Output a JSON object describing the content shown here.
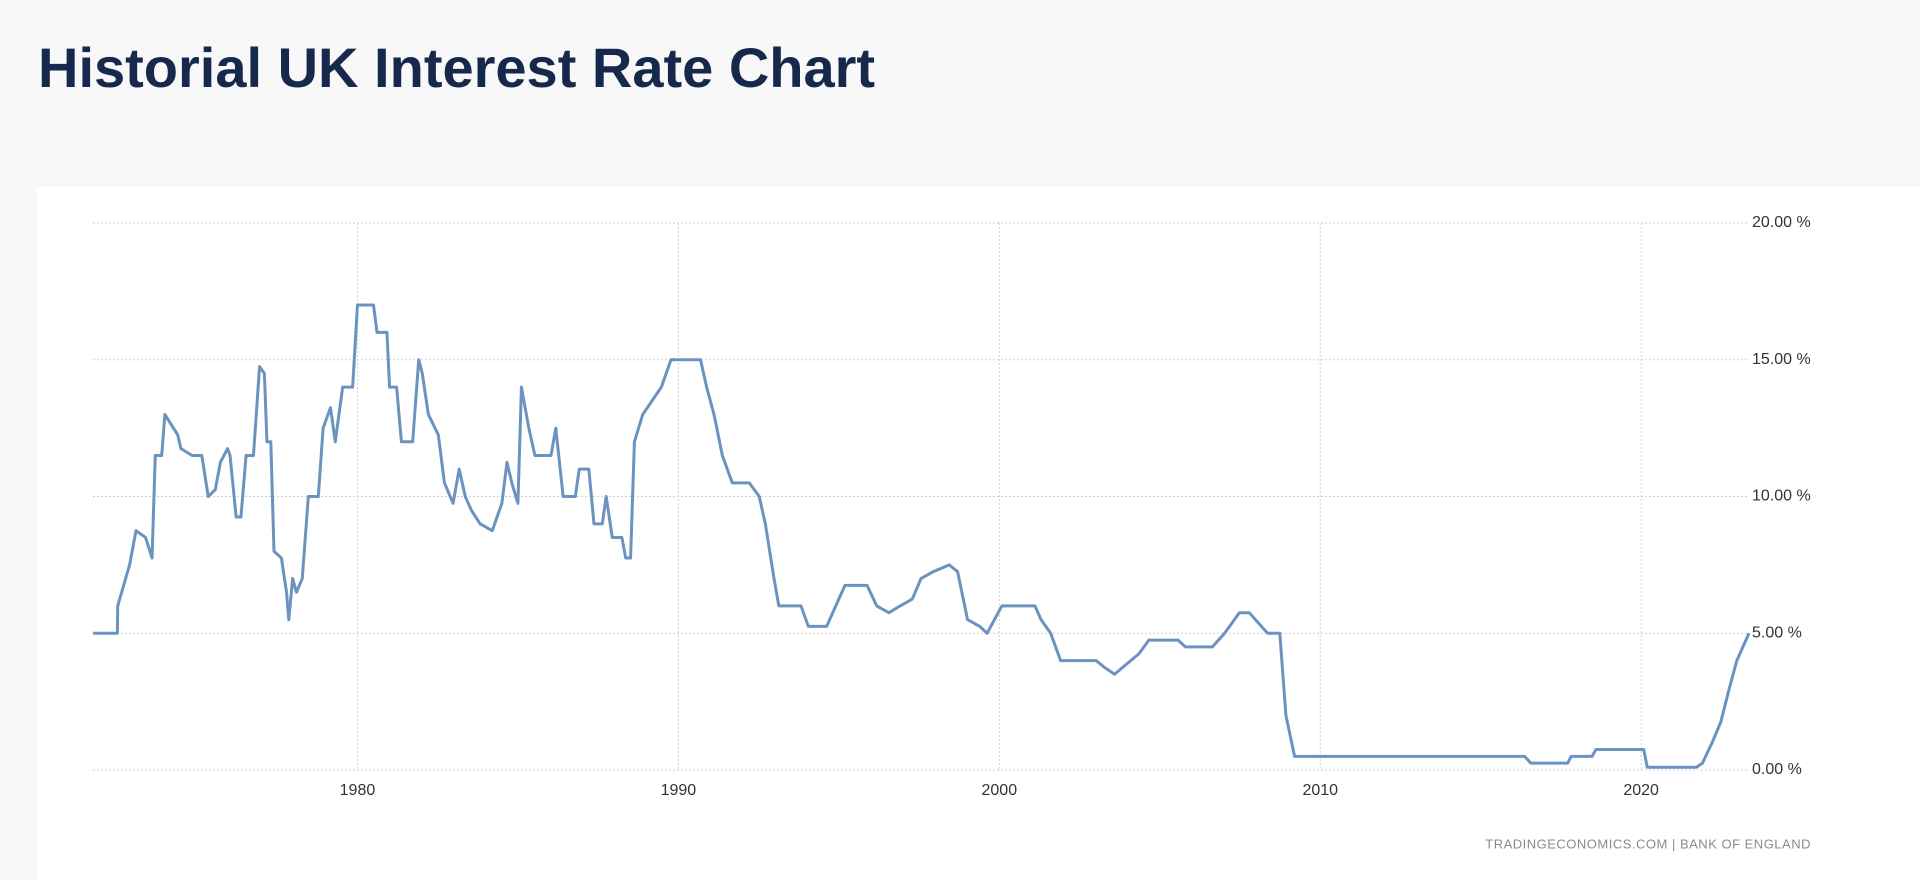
{
  "chart_data": {
    "type": "line",
    "title": "Historial UK Interest Rate Chart",
    "source": "TRADINGECONOMICS.COM | BANK OF ENGLAND",
    "color": "#6b93bf",
    "grid": true,
    "xlim": [
      1971.76,
      2023.36
    ],
    "ylim": [
      0,
      20
    ],
    "xticks": [
      1980,
      1990,
      2000,
      2010,
      2020
    ],
    "yticks": [
      {
        "value": 0,
        "label": "0.00 %"
      },
      {
        "value": 5,
        "label": "5.00 %"
      },
      {
        "value": 10,
        "label": "10.00 %"
      },
      {
        "value": 15,
        "label": "15.00 %"
      },
      {
        "value": 20,
        "label": "20.00 %"
      }
    ],
    "x": [
      1971.76,
      1972.52,
      1972.53,
      1972.9,
      1973.1,
      1973.4,
      1973.6,
      1973.7,
      1973.9,
      1974.0,
      1974.4,
      1974.5,
      1974.85,
      1975.15,
      1975.35,
      1975.57,
      1975.73,
      1975.95,
      1976.03,
      1976.22,
      1976.37,
      1976.53,
      1976.76,
      1976.95,
      1977.1,
      1977.18,
      1977.3,
      1977.4,
      1977.63,
      1977.79,
      1977.86,
      1977.98,
      1978.1,
      1978.28,
      1978.47,
      1978.78,
      1978.93,
      1979.16,
      1979.31,
      1979.54,
      1979.85,
      1980.0,
      1980.5,
      1980.61,
      1980.92,
      1981.0,
      1981.22,
      1981.37,
      1981.72,
      1981.91,
      1982.02,
      1982.21,
      1982.52,
      1982.71,
      1982.98,
      1983.17,
      1983.36,
      1983.55,
      1983.82,
      1984.2,
      1984.5,
      1984.66,
      1984.81,
      1985.0,
      1985.11,
      1985.34,
      1985.53,
      1986.03,
      1986.18,
      1986.41,
      1986.79,
      1986.91,
      1987.21,
      1987.37,
      1987.63,
      1987.75,
      1987.94,
      1988.24,
      1988.36,
      1988.51,
      1988.63,
      1988.89,
      1989.47,
      1989.77,
      1990.69,
      1990.88,
      1991.11,
      1991.37,
      1991.68,
      1992.21,
      1992.52,
      1992.71,
      1992.98,
      1993.13,
      1993.82,
      1994.05,
      1994.62,
      1995.19,
      1995.88,
      1996.18,
      1996.56,
      1996.91,
      1997.29,
      1997.56,
      1997.94,
      1998.44,
      1998.7,
      1999.01,
      1999.39,
      1999.62,
      2000.08,
      2001.11,
      2001.3,
      2001.6,
      2001.91,
      2003.02,
      2003.28,
      2003.59,
      2004.35,
      2004.66,
      2005.57,
      2005.8,
      2006.64,
      2007.02,
      2007.48,
      2007.79,
      2008.36,
      2008.74,
      2008.93,
      2009.2,
      2016.37,
      2016.56,
      2017.71,
      2017.82,
      2018.47,
      2018.59,
      2020.08,
      2020.19,
      2021.72,
      2021.91,
      2022.21,
      2022.48,
      2022.75,
      2022.98,
      2023.36
    ],
    "values": [
      5,
      5,
      6,
      7.5,
      8.75,
      8.5,
      7.75,
      11.5,
      11.5,
      13,
      12.25,
      11.75,
      11.5,
      11.5,
      10,
      10.25,
      11.25,
      11.75,
      11.5,
      9.25,
      9.25,
      11.5,
      11.5,
      14.75,
      14.5,
      12,
      12,
      8,
      7.75,
      6.5,
      5.5,
      7,
      6.5,
      7,
      10,
      10,
      12.5,
      13.25,
      12,
      14,
      14,
      17,
      17,
      16,
      16,
      14,
      14,
      12,
      12,
      15,
      14.5,
      13,
      12.25,
      10.5,
      9.75,
      11,
      10,
      9.5,
      9,
      8.75,
      9.75,
      11.25,
      10.5,
      9.75,
      14,
      12.5,
      11.5,
      11.5,
      12.5,
      10,
      10,
      11,
      11,
      9,
      9,
      10,
      8.5,
      8.5,
      7.75,
      7.75,
      12,
      13,
      14,
      15,
      15,
      14,
      13,
      11.5,
      10.5,
      10.5,
      10,
      9,
      7,
      6,
      6,
      5.25,
      5.25,
      6.75,
      6.75,
      6,
      5.75,
      6,
      6.25,
      7,
      7.25,
      7.5,
      7.25,
      5.5,
      5.25,
      5,
      6,
      6,
      5.5,
      5,
      4,
      4,
      3.75,
      3.5,
      4.25,
      4.75,
      4.75,
      4.5,
      4.5,
      5,
      5.75,
      5.75,
      5,
      5,
      2,
      0.5,
      0.5,
      0.25,
      0.25,
      0.5,
      0.5,
      0.75,
      0.75,
      0.1,
      0.1,
      0.25,
      1,
      1.75,
      3,
      4,
      5
    ]
  }
}
